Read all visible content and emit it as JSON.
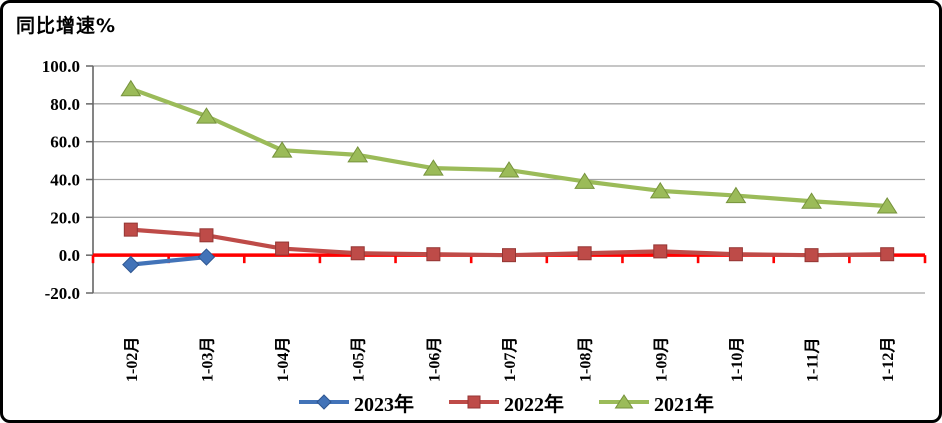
{
  "title": "同比增速%",
  "chart_data": {
    "type": "line",
    "title": "同比增速%",
    "xlabel": "",
    "ylabel": "同比增速%",
    "categories": [
      "1-02月",
      "1-03月",
      "1-04月",
      "1-05月",
      "1-06月",
      "1-07月",
      "1-08月",
      "1-09月",
      "1-10月",
      "1-11月",
      "1-12月"
    ],
    "series": [
      {
        "name": "2023年",
        "marker": "diamond",
        "color": "#4273B8",
        "edge_color": "#2E5690",
        "values": [
          -5,
          -1,
          null,
          null,
          null,
          null,
          null,
          null,
          null,
          null,
          null
        ]
      },
      {
        "name": "2022年",
        "marker": "square",
        "color": "#BE4B48",
        "edge_color": "#943634",
        "values": [
          13.5,
          10.5,
          3.5,
          1,
          0.5,
          0,
          1,
          2,
          0.5,
          0,
          0.5
        ]
      },
      {
        "name": "2021年",
        "marker": "triangle",
        "color": "#9BBB59",
        "edge_color": "#76923C",
        "values": [
          88,
          73.5,
          55.5,
          53,
          46,
          45,
          39,
          34,
          31.5,
          28.5,
          26
        ]
      }
    ],
    "ylim": [
      -20,
      100
    ],
    "ytick_step": 20,
    "ytick_labels": [
      "100.0",
      "80.0",
      "60.0",
      "40.0",
      "20.0",
      "0.0",
      "-20.0"
    ],
    "grid": true,
    "gridline_color": "#A3A3A3",
    "axis_line_color": "#666666",
    "zero_line_color": "#FF0000",
    "legend_position": "bottom"
  }
}
